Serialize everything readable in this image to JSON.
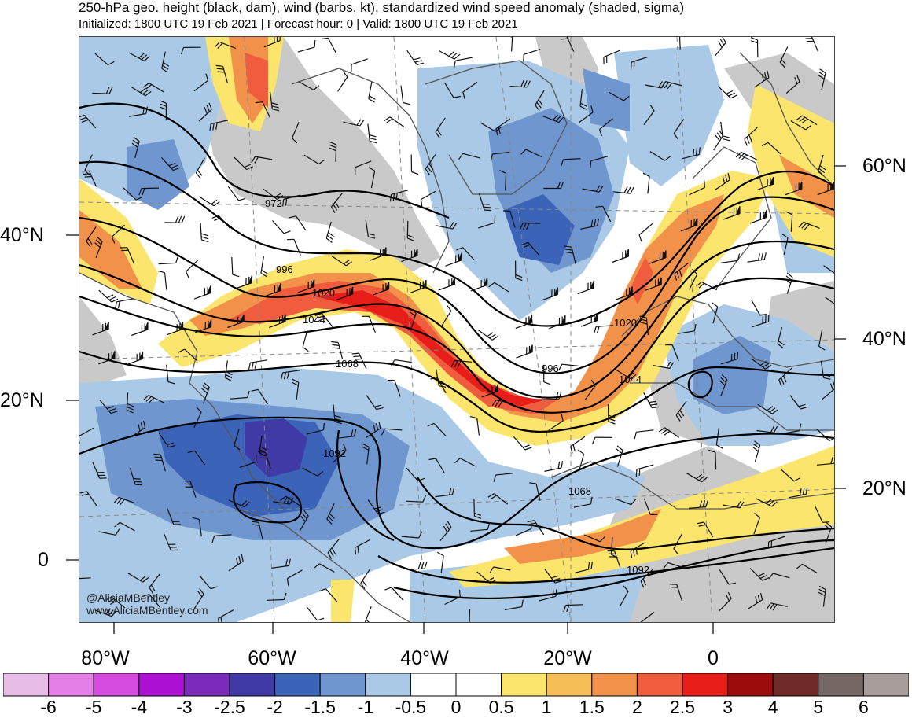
{
  "title": "250-hPa geo. height (black, dam), wind (barbs, kt), standardized wind speed anomaly (shaded, sigma)",
  "subtitle": "Initialized: 1800 UTC 19 Feb 2021 | Forecast hour: 0 | Valid: 1800 UTC 19 Feb 2021",
  "lat_labels_left": [
    "40°N",
    "20°N",
    "0"
  ],
  "lat_labels_right": [
    "60°N",
    "40°N",
    "20°N"
  ],
  "lon_labels": [
    "80°W",
    "60°W",
    "40°W",
    "20°W",
    "0"
  ],
  "contour_labels": [
    "972",
    "996",
    "1020",
    "1044",
    "1068",
    "1092",
    "1020",
    "996",
    "1044",
    "1068",
    "1092"
  ],
  "credits": {
    "handle": "@AliciaMBentley",
    "site": "www.AliciaMBentley.com"
  },
  "colorbar": {
    "ticks": [
      "-6",
      "-5",
      "-4",
      "-3",
      "-2.5",
      "-2",
      "-1.5",
      "-1",
      "-0.5",
      "0",
      "0.5",
      "1",
      "1.5",
      "2",
      "2.5",
      "3",
      "4",
      "5",
      "6"
    ],
    "colors": [
      "#e7bde8",
      "#e47fe6",
      "#d54be0",
      "#ad12d4",
      "#7a2bb9",
      "#3f3aa6",
      "#3b63b8",
      "#6f96cf",
      "#a9c9e6",
      "#ffffff",
      "#ffffff",
      "#fbe56c",
      "#f6be57",
      "#f2914a",
      "#ef5c3e",
      "#e71d19",
      "#9c0c0d",
      "#6f2a2a",
      "#756864",
      "#a89d9b"
    ]
  },
  "colors": {
    "land_gray": "#c9c9c9",
    "ocean_neutral": "#ffffff",
    "jet_core": "#e71d19"
  }
}
